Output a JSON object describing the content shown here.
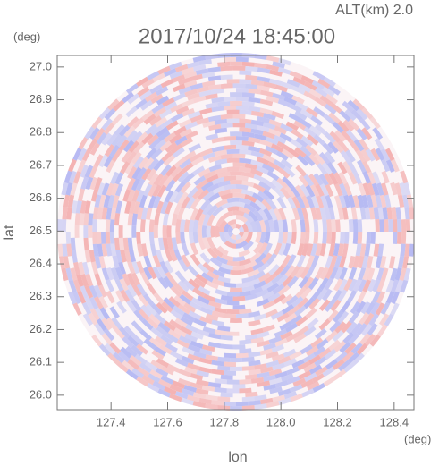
{
  "chart_data": {
    "type": "radar-field",
    "altitude_label": "ALT(km) 2.0",
    "title": "2017/10/24 18:45:00",
    "xlabel": "lon",
    "ylabel": "lat",
    "x_unit": "(deg)",
    "y_unit": "(deg)",
    "xlim": [
      127.21,
      128.47
    ],
    "ylim": [
      25.956,
      27.035
    ],
    "xticks": [
      127.4,
      127.6,
      127.8,
      {
        "value": 128,
        "label": "128.0"
      },
      128.2,
      128.4
    ],
    "yticks": [
      {
        "value": 26,
        "label": "26.0"
      },
      26.1,
      26.2,
      26.3,
      26.4,
      26.5,
      26.6,
      26.7,
      26.8,
      26.9,
      {
        "value": 27,
        "label": "27.0"
      }
    ],
    "colors": [
      "#f2a6a6",
      "#a9aff2"
    ]
  }
}
